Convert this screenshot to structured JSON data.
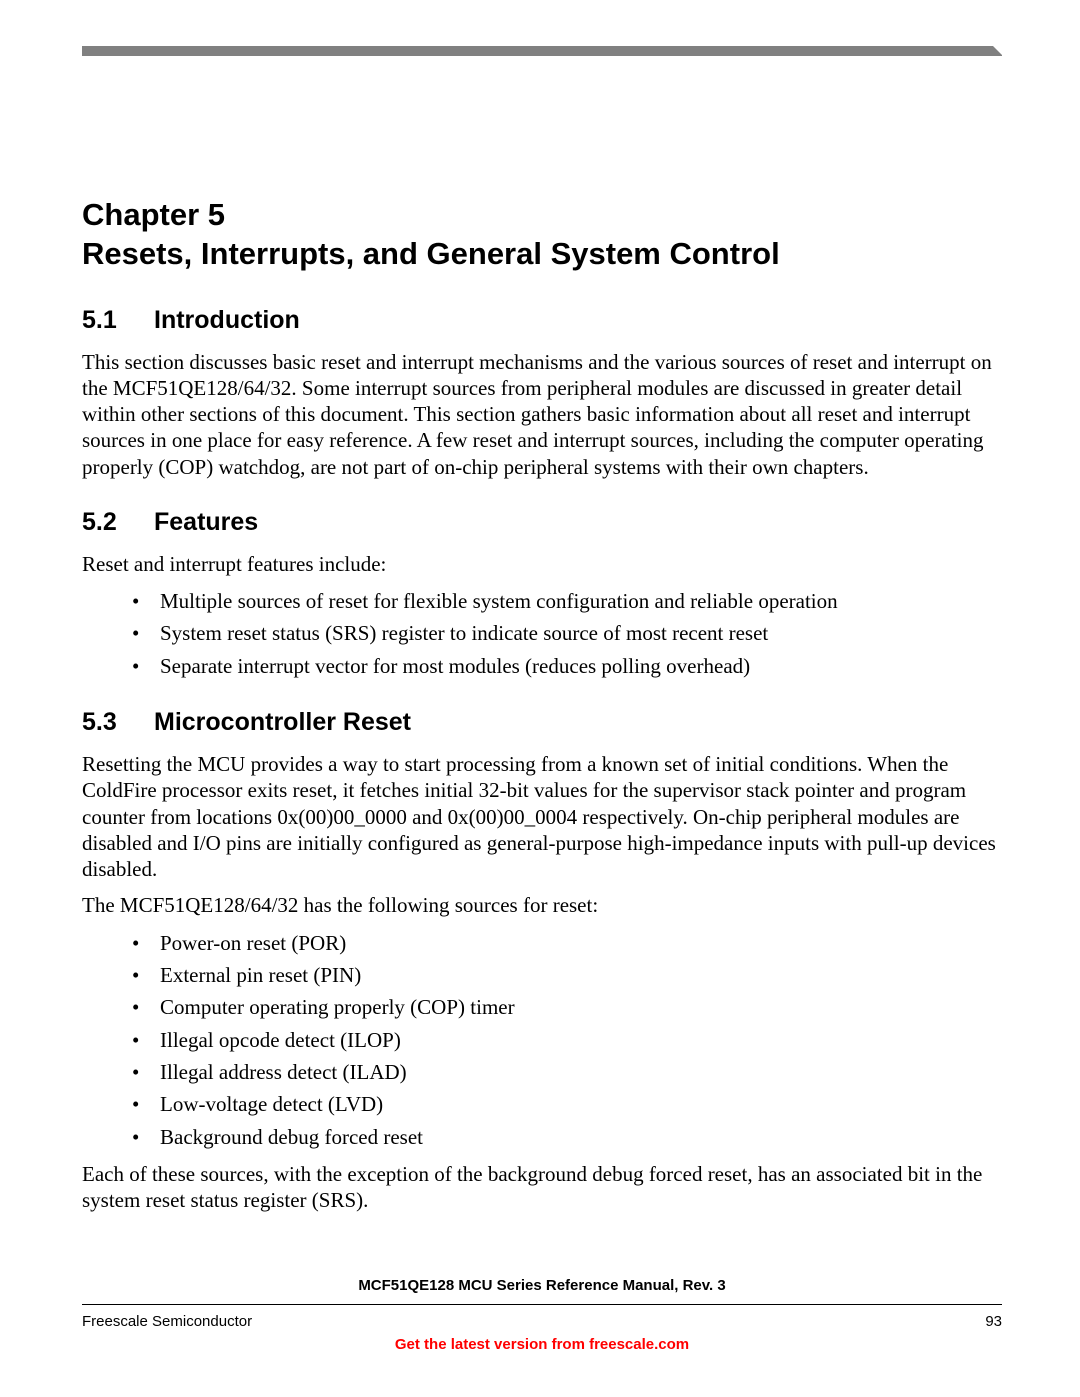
{
  "chapter": {
    "line1": "Chapter 5",
    "line2": "Resets, Interrupts, and General System Control"
  },
  "sections": {
    "s1": {
      "num": "5.1",
      "title": "Introduction",
      "para": "This section discusses basic reset and interrupt mechanisms and the various sources of reset and interrupt on the MCF51QE128/64/32. Some interrupt sources from peripheral modules are discussed in greater detail within other sections of this document. This section gathers basic information about all reset and interrupt sources in one place for easy reference. A few reset and interrupt sources, including the computer operating properly (COP) watchdog, are not part of on-chip peripheral systems with their own chapters."
    },
    "s2": {
      "num": "5.2",
      "title": "Features",
      "intro": "Reset and interrupt features include:",
      "bullets": [
        "Multiple sources of reset for flexible system configuration and reliable operation",
        "System reset status (SRS) register to indicate source of most recent reset",
        "Separate interrupt vector for most modules (reduces polling overhead)"
      ]
    },
    "s3": {
      "num": "5.3",
      "title": "Microcontroller Reset",
      "para1": "Resetting the MCU provides a way to start processing from a known set of initial conditions. When the ColdFire processor exits reset, it fetches initial 32-bit values for the supervisor stack pointer and program counter from locations 0x(00)00_0000 and 0x(00)00_0004 respectively. On-chip peripheral modules are disabled and I/O pins are initially configured as general-purpose high-impedance inputs with pull-up devices disabled.",
      "para2": "The MCF51QE128/64/32 has the following sources for reset:",
      "bullets": [
        "Power-on reset (POR)",
        "External pin reset (PIN)",
        "Computer operating properly (COP) timer",
        "Illegal opcode detect (ILOP)",
        "Illegal address detect (ILAD)",
        "Low-voltage detect (LVD)",
        "Background debug forced reset"
      ],
      "para3": "Each of these sources, with the exception of the background debug forced reset, has an associated bit in the system reset status register (SRS)."
    }
  },
  "footer": {
    "manual": "MCF51QE128 MCU Series Reference Manual, Rev. 3",
    "company": "Freescale Semiconductor",
    "page": "93",
    "link": "Get the latest version from freescale.com"
  },
  "style": {
    "heading_font": "Arial",
    "body_font": "Times New Roman",
    "chapter_fontsize_pt": 24,
    "section_fontsize_pt": 19,
    "body_fontsize_pt": 16,
    "footer_fontsize_pt": 11,
    "link_color": "#ff0000",
    "topbar_color": "#808080",
    "text_color": "#000000",
    "background_color": "#ffffff"
  }
}
